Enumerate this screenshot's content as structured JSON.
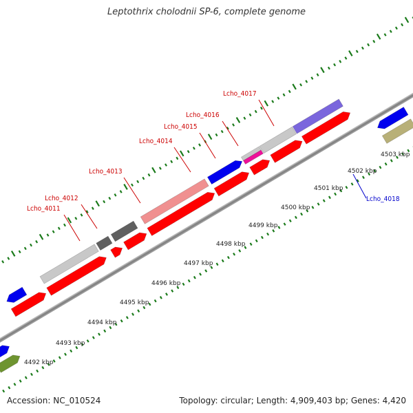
{
  "title": "Leptothrix cholodnii SP-6, complete genome",
  "footer": {
    "accession": "Accession: NC_010524",
    "summary": "Topology: circular; Length: 4,909,403 bp; Genes: 4,420"
  },
  "kbp_labels": [
    "4492 kbp",
    "4493 kbp",
    "4494 kbp",
    "4495 kbp",
    "4496 kbp",
    "4497 kbp",
    "4498 kbp",
    "4499 kbp",
    "4500 kbp",
    "4501 kbp",
    "4502 kbp",
    "4503 kbp"
  ],
  "gene_labels": [
    "Lcho_4011",
    "Lcho_4012",
    "Lcho_4013",
    "Lcho_4014",
    "Lcho_4015",
    "Lcho_4016",
    "Lcho_4017",
    "Lcho_4018"
  ],
  "colors": {
    "backbone": "#888888",
    "tick": "#1a7a1a",
    "label_red": "#cc0000",
    "label_blue": "#0000cc",
    "cds_red": "#ff0000",
    "blue": "#0000ee",
    "light_gray": "#c8c8c8",
    "dark_gray": "#606060",
    "pink": "#f09090",
    "purple": "#7a66dd",
    "magenta": "#ee1199",
    "khaki": "#b8b078",
    "cyan": "#22ccf0",
    "olive": "#6e9430"
  }
}
